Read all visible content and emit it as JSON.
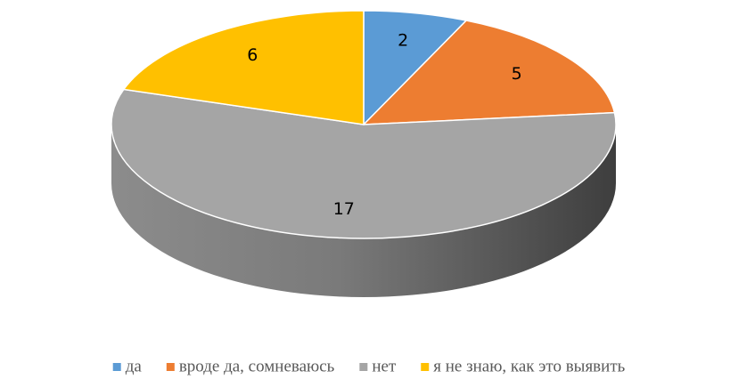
{
  "chart_data": {
    "type": "pie",
    "three_d": true,
    "categories": [
      "да",
      "вроде да, сомневаюсь",
      "нет",
      "я не знаю, как это выявить"
    ],
    "values": [
      2,
      5,
      17,
      6
    ],
    "colors": [
      "#5b9bd5",
      "#ed7d31",
      "#a5a5a5",
      "#ffc000"
    ],
    "legend": "bottom"
  }
}
